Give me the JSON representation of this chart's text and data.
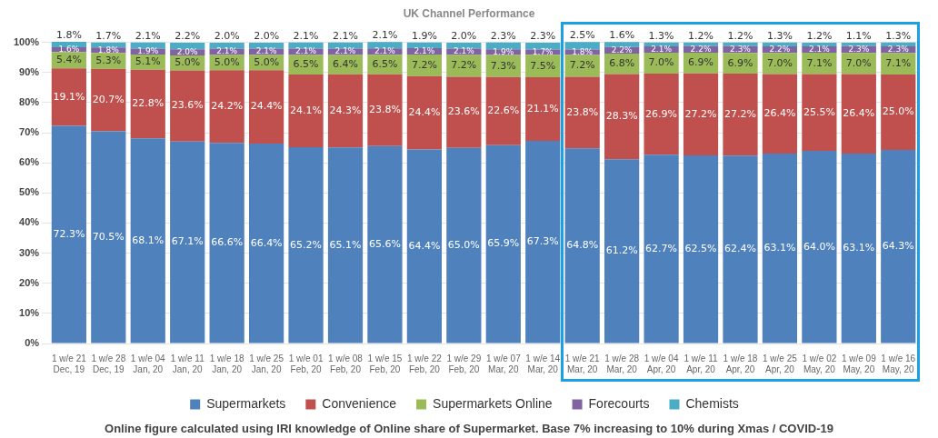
{
  "chart_data": {
    "type": "bar",
    "title": "UK Channel Performance",
    "stacked": true,
    "categories": [
      "1 w/e 21\nDec, 19",
      "1 w/e 28\nDec, 19",
      "1 w/e 04\nJan, 20",
      "1 w/e 11\nJan, 20",
      "1 w/e 18\nJan, 20",
      "1 w/e 25\nJan, 20",
      "1 w/e 01\nFeb, 20",
      "1 w/e 08\nFeb, 20",
      "1 w/e 15\nFeb, 20",
      "1 w/e 22\nFeb, 20",
      "1 w/e 29\nFeb, 20",
      "1 w/e 07\nMar, 20",
      "1 w/e 14\nMar, 20",
      "1 w/e 21\nMar, 20",
      "1 w/e 28\nMar, 20",
      "1 w/e 04\nApr, 20",
      "1 w/e 11\nApr, 20",
      "1 w/e 18\nApr, 20",
      "1 w/e 25\nApr, 20",
      "1 w/e 02\nMay, 20",
      "1 w/e 09\nMay, 20",
      "1 w/e 16\nMay, 20"
    ],
    "series": [
      {
        "name": "Supermarkets",
        "color": "#4f81bd",
        "values": [
          72.3,
          70.5,
          68.1,
          67.1,
          66.6,
          66.4,
          65.2,
          65.1,
          65.6,
          64.4,
          65.0,
          65.9,
          67.3,
          64.8,
          61.2,
          62.7,
          62.5,
          62.4,
          63.1,
          64.0,
          63.1,
          64.3
        ],
        "value_labels": [
          "72.3%",
          "70.5%",
          "68.1%",
          "67.1%",
          "66.6%",
          "66.4%",
          "65.2%",
          "65.1%",
          "65.6%",
          "64.4%",
          "65.0%",
          "65.9%",
          "67.3%",
          "64.8%",
          "61.2%",
          "62.7%",
          "62.5%",
          "62.4%",
          "63.1%",
          "64.0%",
          "63.1%",
          "64.3%"
        ]
      },
      {
        "name": "Convenience",
        "color": "#c0504d",
        "values": [
          19.1,
          20.7,
          22.8,
          23.6,
          24.2,
          24.4,
          24.1,
          24.3,
          23.8,
          24.4,
          23.6,
          22.6,
          21.1,
          23.8,
          28.3,
          26.9,
          27.2,
          27.2,
          26.4,
          25.5,
          26.4,
          25.0
        ],
        "value_labels": [
          "19.1%",
          "20.7%",
          "22.8%",
          "23.6%",
          "24.2%",
          "24.4%",
          "24.1%",
          "24.3%",
          "23.8%",
          "24.4%",
          "23.6%",
          "22.6%",
          "21.1%",
          "23.8%",
          "28.3%",
          "26.9%",
          "27.2%",
          "27.2%",
          "26.4%",
          "25.5%",
          "26.4%",
          "25.0%"
        ]
      },
      {
        "name": "Supermarkets Online",
        "color": "#9bbb59",
        "values": [
          5.4,
          5.3,
          5.1,
          5.0,
          5.0,
          5.0,
          6.5,
          6.4,
          6.5,
          7.2,
          7.2,
          7.3,
          7.5,
          7.2,
          6.8,
          7.0,
          6.9,
          6.9,
          7.0,
          7.1,
          7.0,
          7.1
        ],
        "value_labels": [
          "5.4%",
          "5.3%",
          "5.1%",
          "5.0%",
          "5.0%",
          "5.0%",
          "6.5%",
          "6.4%",
          "6.5%",
          "7.2%",
          "7.2%",
          "7.3%",
          "7.5%",
          "7.2%",
          "6.8%",
          "7.0%",
          "6.9%",
          "6.9%",
          "7.0%",
          "7.1%",
          "7.0%",
          "7.1%"
        ]
      },
      {
        "name": "Forecourts",
        "color": "#8064a2",
        "values": [
          1.6,
          1.8,
          1.9,
          2.0,
          2.1,
          2.1,
          2.1,
          2.1,
          2.1,
          2.1,
          2.1,
          1.9,
          1.7,
          1.8,
          2.2,
          2.1,
          2.2,
          2.3,
          2.2,
          2.1,
          2.3,
          2.3
        ],
        "value_labels": [
          "1.6%",
          "1.8%",
          "1.9%",
          "2.0%",
          "2.1%",
          "2.1%",
          "2.1%",
          "2.1%",
          "2.1%",
          "2.1%",
          "2.1%",
          "1.9%",
          "1.7%",
          "1.8%",
          "2.2%",
          "2.1%",
          "2.2%",
          "2.3%",
          "2.2%",
          "2.1%",
          "2.3%",
          "2.3%"
        ]
      },
      {
        "name": "Chemists",
        "color": "#4bacc6",
        "values": [
          1.8,
          1.7,
          2.1,
          2.2,
          2.0,
          2.0,
          2.1,
          2.1,
          2.1,
          1.9,
          2.0,
          2.3,
          2.3,
          2.5,
          1.6,
          1.3,
          1.2,
          1.2,
          1.3,
          1.2,
          1.1,
          1.3
        ],
        "value_labels": [
          "1.8%",
          "1.7%",
          "2.1%",
          "2.2%",
          "2.0%",
          "2.0%",
          "2.1%",
          "2.1%",
          "2.1%",
          "1.9%",
          "2.0%",
          "2.3%",
          "2.3%",
          "2.5%",
          "1.6%",
          "1.3%",
          "1.2%",
          "1.2%",
          "1.3%",
          "1.2%",
          "1.1%",
          "1.3%"
        ]
      }
    ],
    "ylim": [
      0,
      100.2
    ],
    "yticks": [
      {
        "value": 0,
        "label": "0%"
      },
      {
        "value": 10,
        "label": "10%"
      },
      {
        "value": 20,
        "label": "20%"
      },
      {
        "value": 30,
        "label": "30%"
      },
      {
        "value": 40,
        "label": "40%"
      },
      {
        "value": 50,
        "label": "50%"
      },
      {
        "value": 60,
        "label": "60%"
      },
      {
        "value": 70,
        "label": "70%"
      },
      {
        "value": 80,
        "label": "80%"
      },
      {
        "value": 90,
        "label": "90%"
      },
      {
        "value": 100,
        "label": "100%"
      }
    ],
    "grid": "y",
    "legend": "bottom",
    "annotations": [
      "Online figure calculated using IRI knowledge of Online share of Supermarket. Base 7% increasing to 10% during Xmas / COVID-19"
    ]
  }
}
